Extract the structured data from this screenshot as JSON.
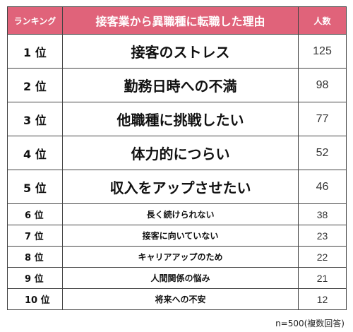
{
  "header": {
    "rank_label": "ランキング",
    "reason_label": "接客業から異職種に転職した理由",
    "count_label": "人数"
  },
  "rows": [
    {
      "rank": "1 位",
      "reason": "接客のストレス",
      "count": "125"
    },
    {
      "rank": "2 位",
      "reason": "勤務日時への不満",
      "count": "98"
    },
    {
      "rank": "3 位",
      "reason": "他職種に挑戦したい",
      "count": "77"
    },
    {
      "rank": "4 位",
      "reason": "体力的につらい",
      "count": "52"
    },
    {
      "rank": "5 位",
      "reason": "収入をアップさせたい",
      "count": "46"
    },
    {
      "rank": "6 位",
      "reason": "長く続けられない",
      "count": "38"
    },
    {
      "rank": "7 位",
      "reason": "接客に向いていない",
      "count": "23"
    },
    {
      "rank": "8 位",
      "reason": "キャリアアップのため",
      "count": "22"
    },
    {
      "rank": "9 位",
      "reason": "人間関係の悩み",
      "count": "21"
    },
    {
      "rank": "10 位",
      "reason": "将来への不安",
      "count": "12"
    }
  ],
  "footnote": "n=500(複数回答)",
  "colors": {
    "header_background": "#e0637a",
    "header_text": "#ffffff",
    "border": "#444444"
  }
}
